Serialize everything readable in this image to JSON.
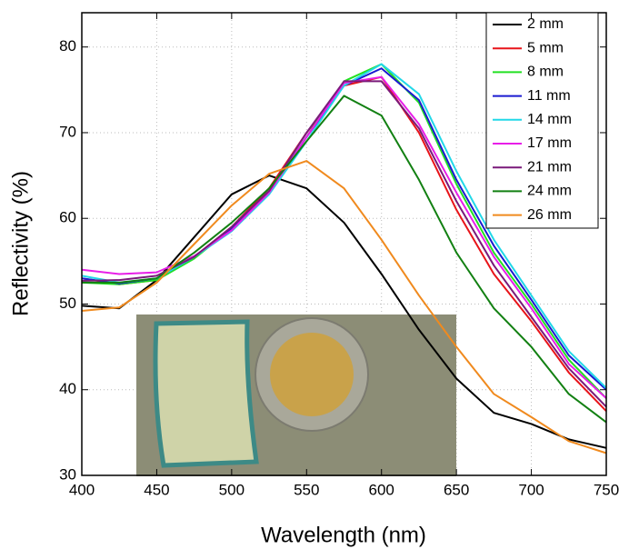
{
  "chart_data": {
    "type": "line",
    "x_label": "Wavelength (nm)",
    "y_label": "Reflectivity (%)",
    "x": [
      400,
      425,
      450,
      475,
      500,
      525,
      550,
      575,
      600,
      625,
      650,
      675,
      700,
      725,
      750
    ],
    "xlim": [
      400,
      750
    ],
    "xticks": [
      400,
      450,
      500,
      550,
      600,
      650,
      700,
      750
    ],
    "ylim": [
      30,
      84
    ],
    "yticks": [
      30,
      40,
      50,
      60,
      70,
      80
    ],
    "grid": true,
    "legend": "upper right",
    "series": [
      {
        "name": "2 mm",
        "color": "#000000",
        "values": [
          49.8,
          49.5,
          52.8,
          57.8,
          62.8,
          65,
          63.5,
          59.5,
          53.5,
          47,
          41.3,
          37.3,
          36,
          34.2,
          33.2
        ]
      },
      {
        "name": "5 mm",
        "color": "#e8141a",
        "values": [
          53,
          52.3,
          52.8,
          55.5,
          59,
          63.5,
          70,
          75.5,
          76.5,
          70,
          61,
          53.5,
          48,
          42,
          37.5
        ]
      },
      {
        "name": "8 mm",
        "color": "#22e022",
        "values": [
          52.5,
          52.3,
          52.8,
          55.3,
          58.8,
          63,
          69.5,
          76,
          78,
          73.5,
          64,
          56,
          50,
          43.5,
          39
        ]
      },
      {
        "name": "11 mm",
        "color": "#1a1ad0",
        "values": [
          53,
          52.4,
          53,
          55.5,
          58.8,
          63,
          69.5,
          75.5,
          77.5,
          73.8,
          64.5,
          56.8,
          50.5,
          44,
          40
        ]
      },
      {
        "name": "14 mm",
        "color": "#22d8e8",
        "values": [
          53.3,
          52.5,
          53,
          55.5,
          58.5,
          62.8,
          69,
          75.5,
          78,
          74.5,
          65.5,
          57.5,
          51,
          44.5,
          40.2
        ]
      },
      {
        "name": "17 mm",
        "color": "#e81ee8",
        "values": [
          54,
          53.5,
          53.7,
          55.6,
          58.6,
          63,
          69.5,
          75.8,
          76.5,
          71,
          63,
          55.5,
          49.5,
          43,
          39
        ]
      },
      {
        "name": "21 mm",
        "color": "#7a1a7a",
        "values": [
          52.7,
          52.8,
          53.3,
          55.5,
          59,
          63.2,
          70,
          76,
          76,
          70.5,
          62,
          54.5,
          48.5,
          42.5,
          38
        ]
      },
      {
        "name": "24 mm",
        "color": "#128012",
        "values": [
          52.5,
          52.5,
          53,
          56,
          59.5,
          63.5,
          69,
          74.3,
          72,
          64.5,
          56,
          49.5,
          45,
          39.5,
          36.2
        ]
      },
      {
        "name": "26 mm",
        "color": "#f08a1e",
        "values": [
          49.2,
          49.6,
          52.5,
          57,
          61.5,
          65.2,
          66.7,
          63.5,
          57.5,
          51,
          45,
          39.5,
          36.8,
          34,
          32.6
        ]
      }
    ]
  }
}
